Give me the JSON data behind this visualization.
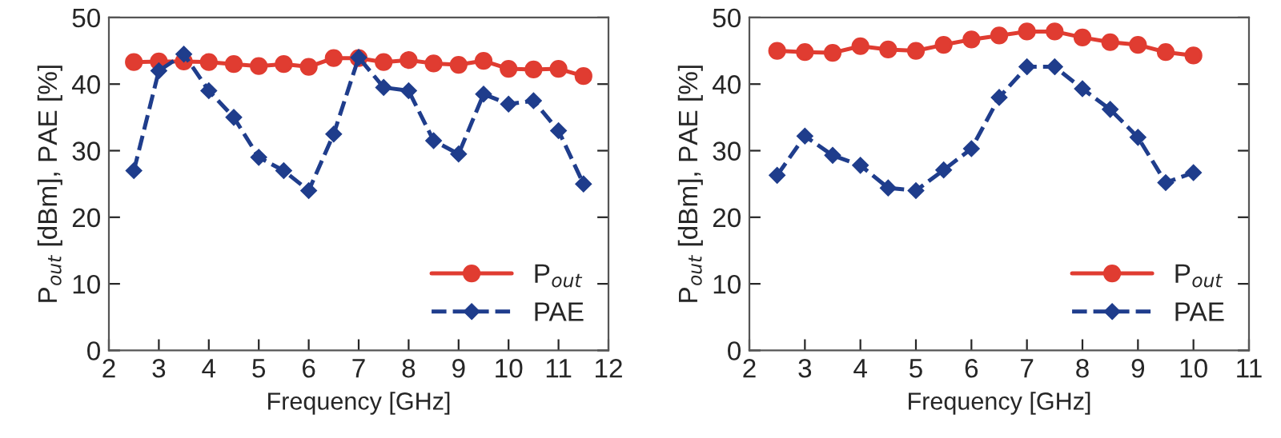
{
  "chart_data": [
    {
      "type": "line",
      "xlabel": "Frequency [GHz]",
      "ylabel": "P$_{out}$ [dBm], PAE [%]",
      "xlim": [
        2,
        12
      ],
      "xticks": [
        2,
        3,
        4,
        5,
        6,
        7,
        8,
        9,
        10,
        11,
        12
      ],
      "ylim": [
        0,
        50
      ],
      "yticks": [
        0,
        10,
        20,
        30,
        40,
        50
      ],
      "legend": "bottom right",
      "grid": false,
      "x": [
        2.5,
        3,
        3.5,
        4,
        4.5,
        5,
        5.5,
        6,
        6.5,
        7,
        7.5,
        8,
        8.5,
        9,
        9.5,
        10,
        10.5,
        11,
        11.5
      ],
      "series": [
        {
          "name": "P$_{out}$",
          "color": "#e03c31",
          "marker": "circle",
          "line_style": "solid",
          "values": [
            43.3,
            43.4,
            43.4,
            43.3,
            43.0,
            42.7,
            43.0,
            42.6,
            43.9,
            43.9,
            43.3,
            43.6,
            43.1,
            42.9,
            43.5,
            42.3,
            42.2,
            42.3,
            41.2
          ]
        },
        {
          "name": "PAE",
          "color": "#1f3d8c",
          "marker": "diamond",
          "line_style": "dashed",
          "values": [
            27,
            42,
            44.5,
            39,
            35,
            29,
            27,
            24,
            32.5,
            44,
            39.5,
            39,
            31.5,
            29.5,
            38.5,
            37,
            37.5,
            33,
            25
          ]
        }
      ]
    },
    {
      "type": "line",
      "xlabel": "Frequency [GHz]",
      "ylabel": "P$_{out}$ [dBm], PAE [%]",
      "xlim": [
        2,
        11
      ],
      "xticks": [
        2,
        3,
        4,
        5,
        6,
        7,
        8,
        9,
        10,
        11
      ],
      "ylim": [
        0,
        50
      ],
      "yticks": [
        0,
        10,
        20,
        30,
        40,
        50
      ],
      "legend": "bottom right",
      "grid": false,
      "x": [
        2.5,
        3,
        3.5,
        4,
        4.5,
        5,
        5.5,
        6,
        6.5,
        7,
        7.5,
        8,
        8.5,
        9,
        9.5,
        10
      ],
      "series": [
        {
          "name": "P$_{out}$",
          "color": "#e03c31",
          "marker": "circle",
          "line_style": "solid",
          "values": [
            45.0,
            44.8,
            44.7,
            45.7,
            45.2,
            45.0,
            45.9,
            46.7,
            47.3,
            47.9,
            47.9,
            47.0,
            46.3,
            45.9,
            44.8,
            44.3
          ]
        },
        {
          "name": "PAE",
          "color": "#1f3d8c",
          "marker": "diamond",
          "line_style": "dashed",
          "values": [
            26.3,
            32.2,
            29.3,
            27.8,
            24.4,
            24.0,
            27.1,
            30.3,
            38.0,
            42.6,
            42.6,
            39.3,
            36.2,
            32.0,
            25.2,
            26.7
          ]
        }
      ]
    }
  ]
}
